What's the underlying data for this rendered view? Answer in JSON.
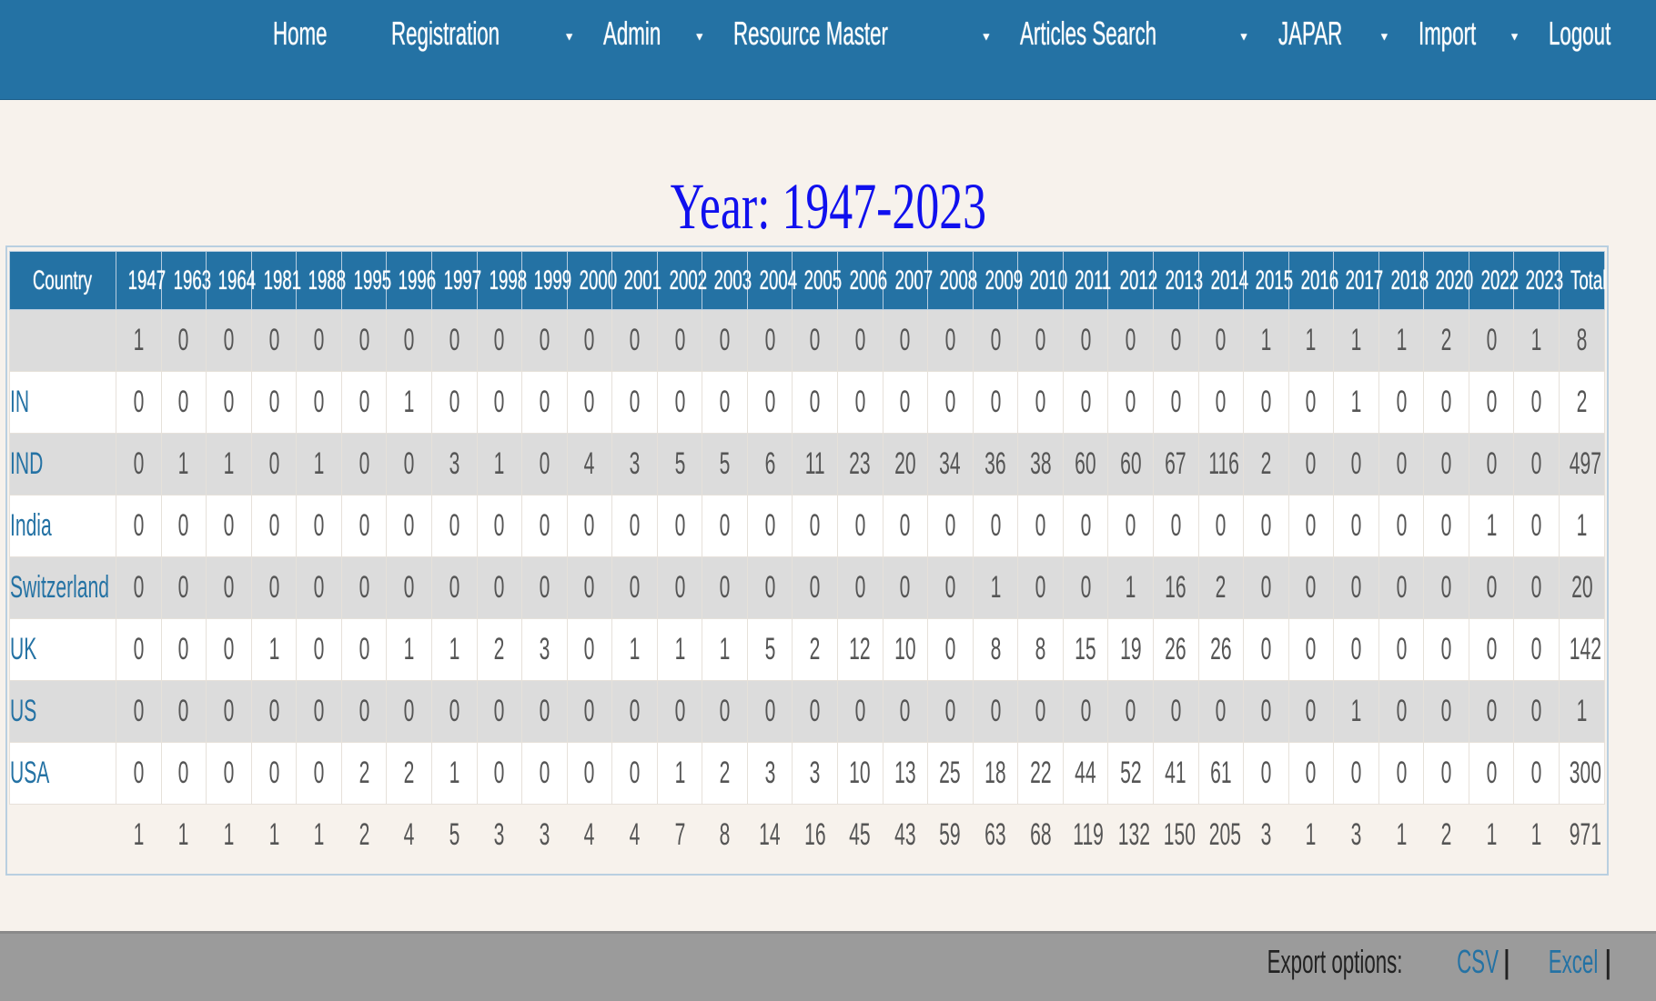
{
  "nav": {
    "items": [
      {
        "label": "Home",
        "dropdown": false
      },
      {
        "label": "Registration",
        "dropdown": true
      },
      {
        "label": "Admin",
        "dropdown": true
      },
      {
        "label": "Resource Master",
        "dropdown": true
      },
      {
        "label": "Articles Search",
        "dropdown": true
      },
      {
        "label": "JAPAR",
        "dropdown": true
      },
      {
        "label": "Import",
        "dropdown": true
      },
      {
        "label": "Logout",
        "dropdown": false
      }
    ]
  },
  "title": "Year: 1947-2023",
  "table": {
    "headers": [
      "Country",
      "1947",
      "1963",
      "1964",
      "1981",
      "1988",
      "1995",
      "1996",
      "1997",
      "1998",
      "1999",
      "2000",
      "2001",
      "2002",
      "2003",
      "2004",
      "2005",
      "2006",
      "2007",
      "2008",
      "2009",
      "2010",
      "2011",
      "2012",
      "2013",
      "2014",
      "2015",
      "2016",
      "2017",
      "2018",
      "2020",
      "2022",
      "2023",
      "Total"
    ],
    "rows": [
      {
        "country": "",
        "values": [
          1,
          0,
          0,
          0,
          0,
          0,
          0,
          0,
          0,
          0,
          0,
          0,
          0,
          0,
          0,
          0,
          0,
          0,
          0,
          0,
          0,
          0,
          0,
          0,
          0,
          1,
          1,
          1,
          1,
          2,
          0,
          1,
          8
        ]
      },
      {
        "country": "IN",
        "values": [
          0,
          0,
          0,
          0,
          0,
          0,
          1,
          0,
          0,
          0,
          0,
          0,
          0,
          0,
          0,
          0,
          0,
          0,
          0,
          0,
          0,
          0,
          0,
          0,
          0,
          0,
          0,
          1,
          0,
          0,
          0,
          0,
          2
        ]
      },
      {
        "country": "IND",
        "values": [
          0,
          1,
          1,
          0,
          1,
          0,
          0,
          3,
          1,
          0,
          4,
          3,
          5,
          5,
          6,
          11,
          23,
          20,
          34,
          36,
          38,
          60,
          60,
          67,
          116,
          2,
          0,
          0,
          0,
          0,
          0,
          0,
          497
        ]
      },
      {
        "country": "India",
        "values": [
          0,
          0,
          0,
          0,
          0,
          0,
          0,
          0,
          0,
          0,
          0,
          0,
          0,
          0,
          0,
          0,
          0,
          0,
          0,
          0,
          0,
          0,
          0,
          0,
          0,
          0,
          0,
          0,
          0,
          0,
          1,
          0,
          1
        ]
      },
      {
        "country": "Switzerland",
        "values": [
          0,
          0,
          0,
          0,
          0,
          0,
          0,
          0,
          0,
          0,
          0,
          0,
          0,
          0,
          0,
          0,
          0,
          0,
          0,
          1,
          0,
          0,
          1,
          16,
          2,
          0,
          0,
          0,
          0,
          0,
          0,
          0,
          20
        ]
      },
      {
        "country": "UK",
        "values": [
          0,
          0,
          0,
          1,
          0,
          0,
          1,
          1,
          2,
          3,
          0,
          1,
          1,
          1,
          5,
          2,
          12,
          10,
          0,
          8,
          8,
          15,
          19,
          26,
          26,
          0,
          0,
          0,
          0,
          0,
          0,
          0,
          142
        ]
      },
      {
        "country": "US",
        "values": [
          0,
          0,
          0,
          0,
          0,
          0,
          0,
          0,
          0,
          0,
          0,
          0,
          0,
          0,
          0,
          0,
          0,
          0,
          0,
          0,
          0,
          0,
          0,
          0,
          0,
          0,
          0,
          1,
          0,
          0,
          0,
          0,
          1
        ]
      },
      {
        "country": "USA",
        "values": [
          0,
          0,
          0,
          0,
          0,
          2,
          2,
          1,
          0,
          0,
          0,
          0,
          1,
          2,
          3,
          3,
          10,
          13,
          25,
          18,
          22,
          44,
          52,
          41,
          61,
          0,
          0,
          0,
          0,
          0,
          0,
          0,
          300
        ]
      }
    ],
    "totals": [
      1,
      1,
      1,
      1,
      1,
      2,
      4,
      5,
      3,
      3,
      4,
      4,
      7,
      8,
      14,
      16,
      45,
      43,
      59,
      63,
      68,
      119,
      132,
      150,
      205,
      3,
      1,
      3,
      1,
      2,
      1,
      1,
      971
    ]
  },
  "footer": {
    "export_label": "Export options:",
    "csv": "CSV",
    "excel": "Excel",
    "separator": "|"
  },
  "colors": {
    "nav": "#2472a4",
    "title": "#1010ee",
    "link": "#2472a4",
    "footer": "#9b9b9b"
  }
}
